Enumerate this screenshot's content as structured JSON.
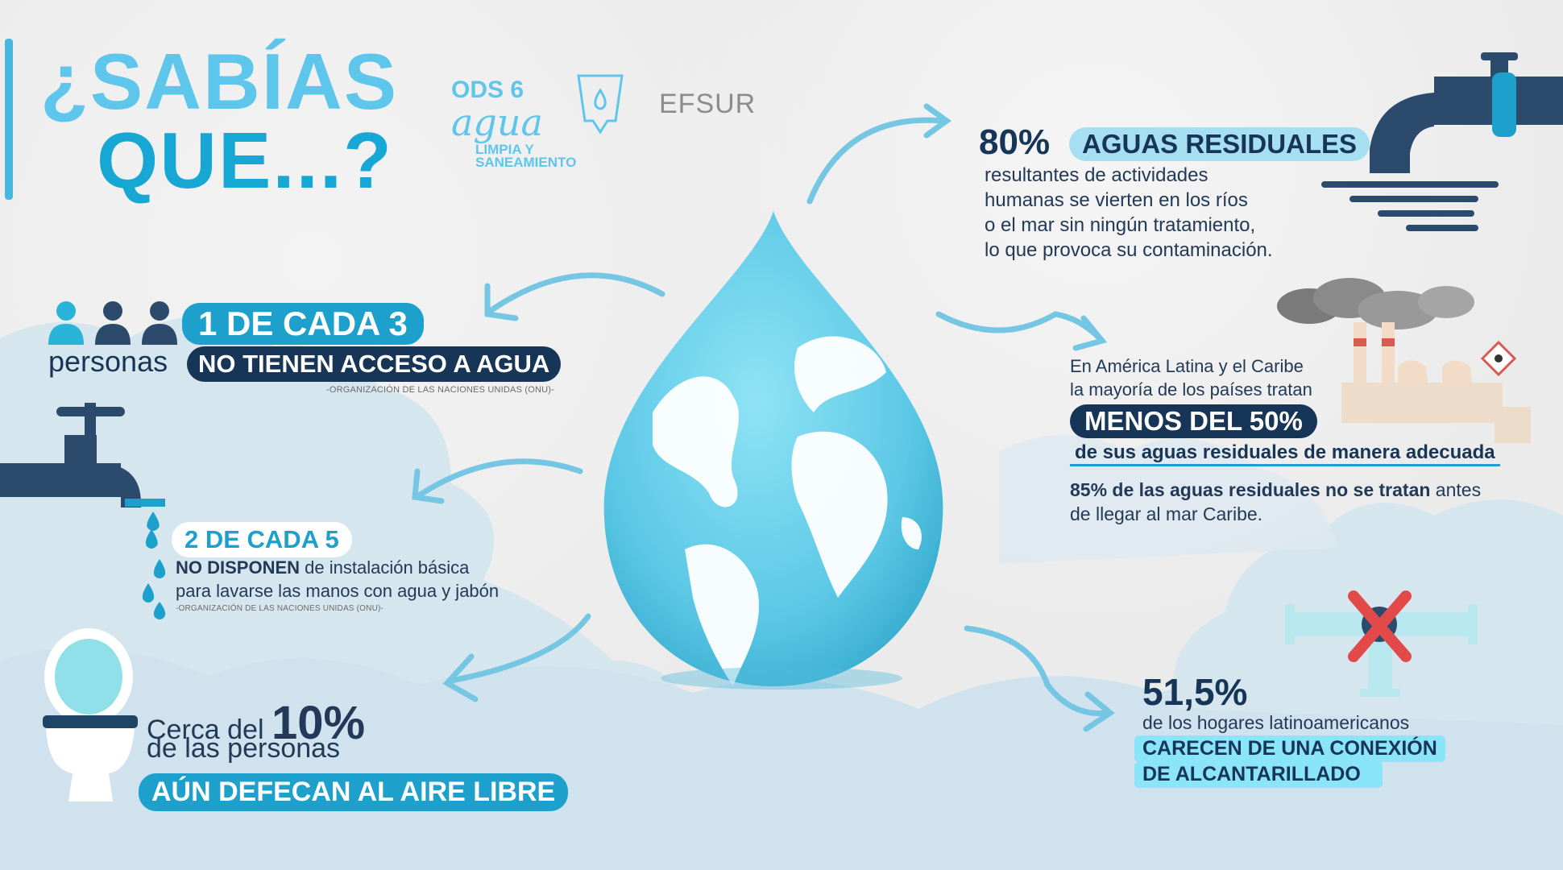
{
  "title": {
    "line1": "¿SABÍAS",
    "line2": "QUE...?"
  },
  "logo_ods": {
    "number": "ODS 6",
    "word": "agua",
    "subtitle_1": "LIMPIA Y",
    "subtitle_2": "SANEAMIENTO"
  },
  "logo_efsur": "EFSUR",
  "fact_1": {
    "headline": "1 DE CADA 3",
    "label": "personas",
    "detail": "NO TIENEN ACCESO A AGUA",
    "source": "-ORGANIZACIÓN DE LAS NACIONES UNIDAS (ONU)-"
  },
  "fact_2": {
    "headline": "2 DE CADA 5",
    "bold": "NO DISPONEN",
    "text_1": " de instalación básica",
    "text_2": "para lavarse las manos con agua y jabón",
    "source": "-ORGANIZACIÓN DE LAS NACIONES UNIDAS (ONU)-"
  },
  "fact_3": {
    "prefix": "Cerca del ",
    "percent": "10%",
    "line2": "de las personas",
    "detail": "AÚN DEFECAN AL AIRE LIBRE"
  },
  "fact_4": {
    "percent": "80%",
    "headline": "AGUAS RESIDUALES",
    "lines": [
      "resultantes de actividades",
      "humanas se vierten en los ríos",
      "o el mar sin ningún tratamiento,",
      "lo que provoca su contaminación."
    ]
  },
  "fact_5": {
    "line1": "En América Latina y el Caribe",
    "line2": "la mayoría de los países tratan",
    "headline": "MENOS DEL 50%",
    "line3": "de sus aguas residuales de manera adecuada",
    "bold": "85% de las aguas residuales no se tratan",
    "rest_1": " antes",
    "rest_2": "de llegar al mar Caribe."
  },
  "fact_6": {
    "percent": "51,5%",
    "line1": "de los hogares latinoamericanos",
    "headline_1": "CARECEN DE UNA CONEXIÓN",
    "headline_2": "DE ALCANTARILLADO"
  },
  "colors": {
    "accent": "#1ea0cc",
    "navy": "#173556",
    "light": "#a7dff2",
    "drop": "#6fd3ee"
  },
  "icons": [
    "people-icon",
    "faucet-icon",
    "water-drop-icon",
    "toilet-icon",
    "globe-drop-icon",
    "pipe-outfall-icon",
    "factory-icon",
    "blocked-pipe-icon",
    "arrow-icon"
  ]
}
